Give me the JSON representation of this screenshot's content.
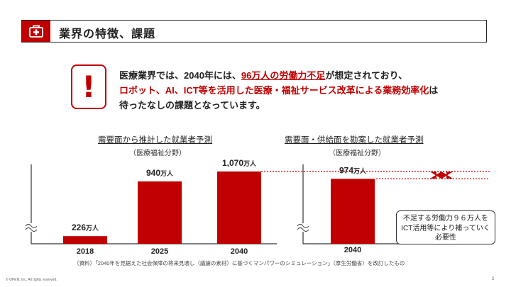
{
  "header": {
    "title": "業界の特徴、課題",
    "icon": "first-aid-kit-icon",
    "accent_color": "#c00000"
  },
  "alert": {
    "icon": "exclamation-icon",
    "mark": "!",
    "line1_a": "医療業界では、2040年には、",
    "line1_b": "96万人の労働力不足",
    "line1_c": "が想定されており、",
    "line2_a": "ロボット、AI、ICT等を活用した医療・福祉サービス改革による業務効率化",
    "line2_b": "は",
    "line3": "待ったなしの課題となっています。"
  },
  "chart_data": [
    {
      "type": "bar",
      "title": "需要面から推計した就業者予測",
      "subtitle": "（医療福祉分野）",
      "categories": [
        "2018",
        "2025",
        "2040"
      ],
      "values": [
        226,
        940,
        1070
      ],
      "value_labels": [
        {
          "num": "226",
          "unit": "万人"
        },
        {
          "num": "940",
          "unit": "万人"
        },
        {
          "num": "1,070",
          "unit": "万人"
        }
      ],
      "axis_break": true,
      "color": "#c00000"
    },
    {
      "type": "bar",
      "title": "需要面・供給面を勘案した就業者予測",
      "subtitle": "（医療福祉分野）",
      "categories": [
        "2040"
      ],
      "values": [
        974
      ],
      "value_labels": [
        {
          "num": "974",
          "unit": "万人"
        }
      ],
      "gap_reference": 1070,
      "axis_break": true,
      "color": "#c00000"
    }
  ],
  "callout": {
    "line1": "不足する労働力９６万人を",
    "line2": "ICT活用等により補っていく",
    "line3": "必要性"
  },
  "footer": {
    "source": "（資料）「2040年を見据えた社会保障の将来見通し（議論の素材）に基づくマンパワーのシミュレーション」（厚生労働省）を改訂したもの",
    "copyright": "© OPEN, Inc. All rights reserved.",
    "page": "2"
  }
}
